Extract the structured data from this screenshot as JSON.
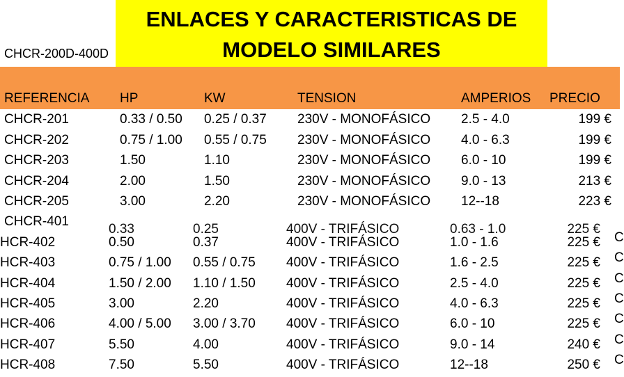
{
  "title_line1": "ENLACES Y CARACTERISTICAS DE",
  "title_line2": "MODELO SIMILARES",
  "model_code": "CHCR-200D-400D",
  "headers": {
    "ref": "REFERENCIA",
    "hp": "HP",
    "kw": "KW",
    "tension": "TENSION",
    "amp": "AMPERIOS",
    "price": "PRECIO"
  },
  "rows_200": [
    {
      "ref": "CHCR-201",
      "hp": "0.33 / 0.50",
      "kw": "0.25 / 0.37",
      "tension": "230V - MONOFÁSICO",
      "amp": "2.5 - 4.0",
      "price": "199 €"
    },
    {
      "ref": "CHCR-202",
      "hp": "0.75 / 1.00",
      "kw": "0.55 / 0.75",
      "tension": "230V - MONOFÁSICO",
      "amp": "4.0 - 6.3",
      "price": "199 €"
    },
    {
      "ref": "CHCR-203",
      "hp": "1.50",
      "kw": "1.10",
      "tension": "230V - MONOFÁSICO",
      "amp": "6.0 - 10",
      "price": "199 €"
    },
    {
      "ref": "CHCR-204",
      "hp": "2.00",
      "kw": "1.50",
      "tension": "230V - MONOFÁSICO",
      "amp": "9.0 - 13",
      "price": "213 €"
    },
    {
      "ref": "CHCR-205",
      "hp": "3.00",
      "kw": "2.20",
      "tension": "230V - MONOFÁSICO",
      "amp": "12--18",
      "price": "223 €"
    }
  ],
  "row_401": {
    "ref": "CHCR-401",
    "hp": "0.33",
    "kw": "0.25",
    "tension": "400V - TRIFÁSICO",
    "amp": "0.63 - 1.0",
    "price": "225 €"
  },
  "rows_400": [
    {
      "ref": "HCR-402",
      "hp": "0.50",
      "kw": "0.37",
      "tension": "400V - TRIFÁSICO",
      "amp": "1.0 - 1.6",
      "price": "225 €"
    },
    {
      "ref": "HCR-403",
      "hp": "0.75 / 1.00",
      "kw": "0.55 / 0.75",
      "tension": "400V - TRIFÁSICO",
      "amp": "1.6 - 2.5",
      "price": "225 €"
    },
    {
      "ref": "HCR-404",
      "hp": "1.50 / 2.00",
      "kw": "1.10 / 1.50",
      "tension": "400V - TRIFÁSICO",
      "amp": "2.5 - 4.0",
      "price": "225 €"
    },
    {
      "ref": "HCR-405",
      "hp": "3.00",
      "kw": "2.20",
      "tension": "400V - TRIFÁSICO",
      "amp": "4.0 - 6.3",
      "price": "225 €"
    },
    {
      "ref": "HCR-406",
      "hp": "4.00 / 5.00",
      "kw": "3.00 / 3.70",
      "tension": "400V - TRIFÁSICO",
      "amp": "6.0 - 10",
      "price": "225 €"
    },
    {
      "ref": "HCR-407",
      "hp": "5.50",
      "kw": "4.00",
      "tension": "400V - TRIFÁSICO",
      "amp": "9.0 - 14",
      "price": "240 €"
    },
    {
      "ref": "HCR-408",
      "hp": "7.50",
      "kw": "5.50",
      "tension": "400V - TRIFÁSICO",
      "amp": "12--18",
      "price": "250 €"
    }
  ],
  "edge_glyph": "C"
}
